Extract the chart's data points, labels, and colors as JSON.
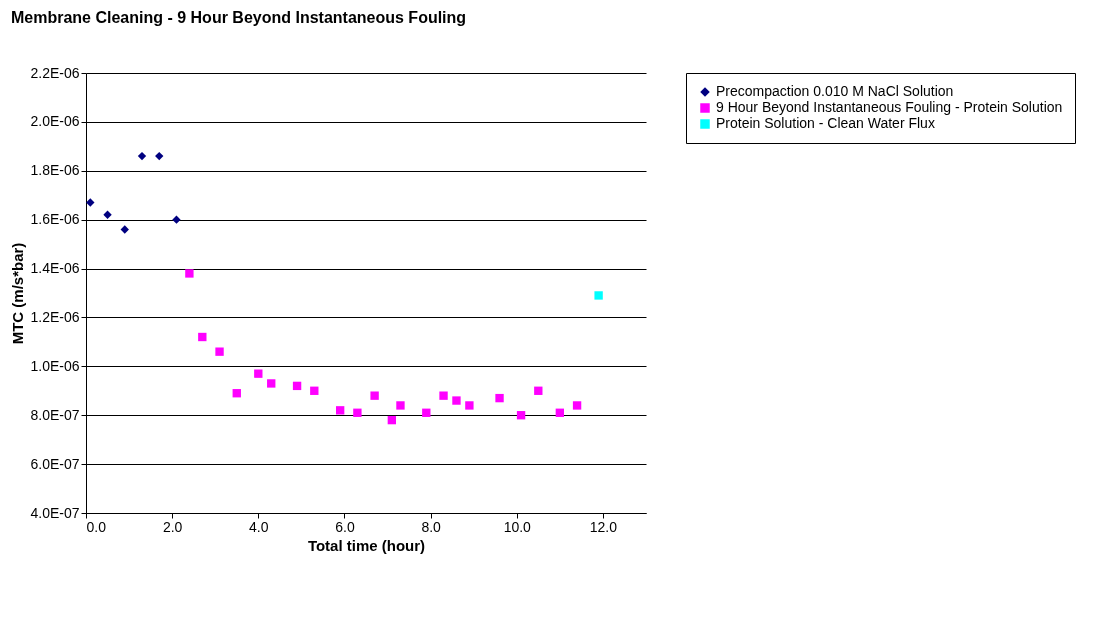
{
  "chart_data": {
    "type": "scatter",
    "title": "Membrane Cleaning - 9 Hour Beyond Instantaneous Fouling",
    "xlabel": "Total time (hour)",
    "ylabel": "MTC (m/s*bar)",
    "xlim": [
      0,
      13
    ],
    "xticks": [
      {
        "value": 0,
        "label": "0.0"
      },
      {
        "value": 2,
        "label": "2.0"
      },
      {
        "value": 4,
        "label": "4.0"
      },
      {
        "value": 6,
        "label": "6.0"
      },
      {
        "value": 8,
        "label": "8.0"
      },
      {
        "value": 10,
        "label": "10.0"
      },
      {
        "value": 12,
        "label": "12.0"
      }
    ],
    "ylim": [
      4e-07,
      2.2e-06
    ],
    "yticks": [
      {
        "value": 4e-07,
        "label": "4.0E-07"
      },
      {
        "value": 6e-07,
        "label": "6.0E-07"
      },
      {
        "value": 8e-07,
        "label": "8.0E-07"
      },
      {
        "value": 1e-06,
        "label": "1.0E-06"
      },
      {
        "value": 1.2e-06,
        "label": "1.2E-06"
      },
      {
        "value": 1.4e-06,
        "label": "1.4E-06"
      },
      {
        "value": 1.6e-06,
        "label": "1.6E-06"
      },
      {
        "value": 1.8e-06,
        "label": "1.8E-06"
      },
      {
        "value": 2e-06,
        "label": "2.0E-06"
      },
      {
        "value": 2.2e-06,
        "label": "2.2E-06"
      }
    ],
    "grid": "y",
    "legend": "right",
    "series": [
      {
        "name": "Precompaction 0.010 M NaCl Solution",
        "color": "#000080",
        "marker": "diamond",
        "x": [
          0.1,
          0.5,
          0.9,
          1.3,
          1.7,
          2.1
        ],
        "values": [
          1.67e-06,
          1.62e-06,
          1.56e-06,
          1.86e-06,
          1.86e-06,
          1.6e-06
        ]
      },
      {
        "name": "9 Hour Beyond Instantaneous Fouling - Protein Solution",
        "color": "#ff00ff",
        "marker": "square",
        "x": [
          2.4,
          2.7,
          3.1,
          3.5,
          4.0,
          4.3,
          4.9,
          5.3,
          5.9,
          6.3,
          6.7,
          7.1,
          7.3,
          7.9,
          8.3,
          8.6,
          8.9,
          9.6,
          10.1,
          10.5,
          11.0,
          11.4
        ],
        "values": [
          1.38e-06,
          1.12e-06,
          1.06e-06,
          8.9e-07,
          9.7e-07,
          9.3e-07,
          9.2e-07,
          9e-07,
          8.2e-07,
          8.1e-07,
          8.8e-07,
          7.8e-07,
          8.4e-07,
          8.1e-07,
          8.8e-07,
          8.6e-07,
          8.4e-07,
          8.7e-07,
          8e-07,
          9e-07,
          8.1e-07,
          8.4e-07
        ]
      },
      {
        "name": "Protein Solution - Clean Water Flux",
        "color": "#00ffff",
        "marker": "square",
        "x": [
          11.9
        ],
        "values": [
          1.29e-06
        ]
      }
    ]
  }
}
